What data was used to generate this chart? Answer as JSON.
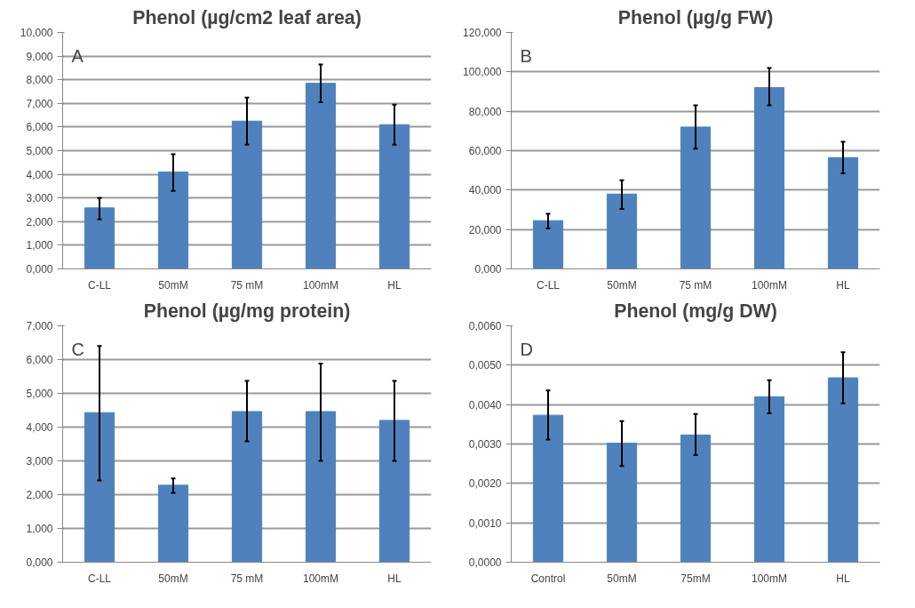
{
  "chart_data": [
    {
      "type": "bar",
      "title": "Phenol (µg/cm2 leaf area)",
      "annotations": [
        "A"
      ],
      "categories": [
        "C-LL",
        "50mM",
        "75 mM",
        "100mM",
        "HL"
      ],
      "color": "#4f81bd",
      "values": [
        2.58,
        4.1,
        6.25,
        7.85,
        6.1
      ],
      "errors": [
        [
          2.1,
          3.0
        ],
        [
          3.3,
          4.85
        ],
        [
          5.25,
          7.25
        ],
        [
          7.05,
          8.65
        ],
        [
          5.25,
          6.95
        ]
      ],
      "ylim": [
        0,
        10
      ],
      "yticks": [
        {
          "value": 0,
          "label": "0,000"
        },
        {
          "value": 1,
          "label": "1,000"
        },
        {
          "value": 2,
          "label": "2,000"
        },
        {
          "value": 3,
          "label": "3,000"
        },
        {
          "value": 4,
          "label": "4,000"
        },
        {
          "value": 5,
          "label": "5,000"
        },
        {
          "value": 6,
          "label": "6,000"
        },
        {
          "value": 7,
          "label": "7,000"
        },
        {
          "value": 8,
          "label": "8,000"
        },
        {
          "value": 9,
          "label": "9,000"
        },
        {
          "value": 10,
          "label": "10,000"
        }
      ],
      "grid": "y"
    },
    {
      "type": "bar",
      "title": "Phenol (µg/g FW)",
      "annotations": [
        "B"
      ],
      "categories": [
        "C-LL",
        "50mM",
        "75 mM",
        "100mM",
        "HL"
      ],
      "color": "#4f81bd",
      "values": [
        24.5,
        38,
        72,
        92,
        56.5
      ],
      "errors": [
        [
          20.5,
          28
        ],
        [
          30.5,
          45
        ],
        [
          61,
          83
        ],
        [
          83,
          102
        ],
        [
          48.5,
          64.5
        ]
      ],
      "ylim": [
        0,
        120
      ],
      "yticks": [
        {
          "value": 0,
          "label": "0,000"
        },
        {
          "value": 20,
          "label": "20,000"
        },
        {
          "value": 40,
          "label": "40,000"
        },
        {
          "value": 60,
          "label": "60,000"
        },
        {
          "value": 80,
          "label": "80,000"
        },
        {
          "value": 100,
          "label": "100,000"
        },
        {
          "value": 120,
          "label": "120,000"
        }
      ],
      "grid": "y"
    },
    {
      "type": "bar",
      "title": "Phenol (µg/mg protein)",
      "annotations": [
        "C"
      ],
      "categories": [
        "C-LL",
        "50mM",
        "75 mM",
        "100mM",
        "HL"
      ],
      "color": "#4f81bd",
      "values": [
        4.43,
        2.28,
        4.46,
        4.46,
        4.2
      ],
      "errors": [
        [
          2.42,
          6.4
        ],
        [
          2.05,
          2.48
        ],
        [
          3.58,
          5.37
        ],
        [
          3.0,
          5.88
        ],
        [
          3.0,
          5.37
        ]
      ],
      "ylim": [
        0,
        7
      ],
      "yticks": [
        {
          "value": 0,
          "label": "0,000"
        },
        {
          "value": 1,
          "label": "1,000"
        },
        {
          "value": 2,
          "label": "2,000"
        },
        {
          "value": 3,
          "label": "3,000"
        },
        {
          "value": 4,
          "label": "4,000"
        },
        {
          "value": 5,
          "label": "5,000"
        },
        {
          "value": 6,
          "label": "6,000"
        },
        {
          "value": 7,
          "label": "7,000"
        }
      ],
      "grid": "y"
    },
    {
      "type": "bar",
      "title": "Phenol (mg/g DW)",
      "annotations": [
        "D"
      ],
      "categories": [
        "Control",
        "50mM",
        "75mM",
        "100mM",
        "HL"
      ],
      "color": "#4f81bd",
      "values": [
        0.00373,
        0.00302,
        0.00323,
        0.0042,
        0.00468
      ],
      "errors": [
        [
          0.00311,
          0.00436
        ],
        [
          0.00244,
          0.00358
        ],
        [
          0.00272,
          0.00376
        ],
        [
          0.00378,
          0.00462
        ],
        [
          0.00403,
          0.00533
        ]
      ],
      "ylim": [
        0,
        0.006
      ],
      "yticks": [
        {
          "value": 0,
          "label": "0,0000"
        },
        {
          "value": 0.001,
          "label": "0,0010"
        },
        {
          "value": 0.002,
          "label": "0,0020"
        },
        {
          "value": 0.003,
          "label": "0,0030"
        },
        {
          "value": 0.004,
          "label": "0,0040"
        },
        {
          "value": 0.005,
          "label": "0,0050"
        },
        {
          "value": 0.006,
          "label": "0,0060"
        }
      ],
      "grid": "y"
    }
  ]
}
